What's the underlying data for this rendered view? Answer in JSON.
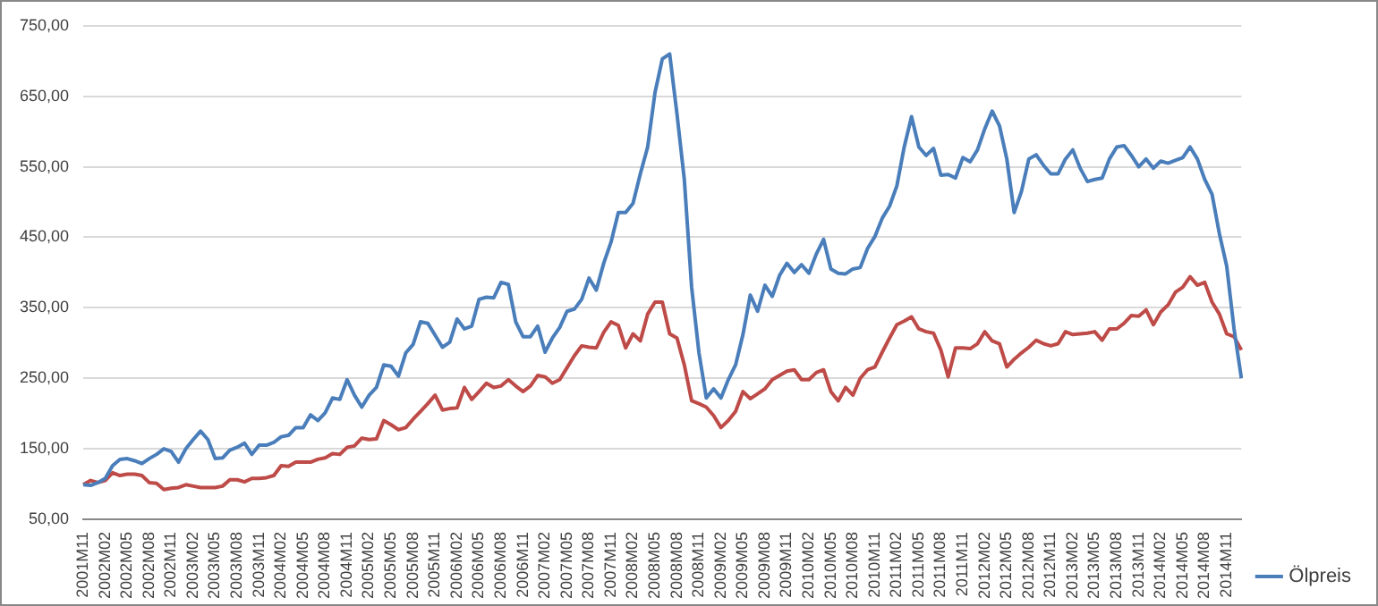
{
  "chart_data": {
    "type": "line",
    "categories": [
      "2001M11",
      null,
      null,
      "2002M02",
      null,
      null,
      "2002M05",
      null,
      null,
      "2002M08",
      null,
      null,
      "2002M11",
      null,
      null,
      "2003M02",
      null,
      null,
      "2003M05",
      null,
      null,
      "2003M08",
      null,
      null,
      "2003M11",
      null,
      null,
      "2004M02",
      null,
      null,
      "2004M05",
      null,
      null,
      "2004M08",
      null,
      null,
      "2004M11",
      null,
      null,
      "2005M02",
      null,
      null,
      "2005M05",
      null,
      null,
      "2005M08",
      null,
      null,
      "2005M11",
      null,
      null,
      "2006M02",
      null,
      null,
      "2006M05",
      null,
      null,
      "2006M08",
      null,
      null,
      "2006M11",
      null,
      null,
      "2007M02",
      null,
      null,
      "2007M05",
      null,
      null,
      "2007M08",
      null,
      null,
      "2007M11",
      null,
      null,
      "2008M02",
      null,
      null,
      "2008M05",
      null,
      null,
      "2008M08",
      null,
      null,
      "2008M11",
      null,
      null,
      "2009M02",
      null,
      null,
      "2009M05",
      null,
      null,
      "2009M08",
      null,
      null,
      "2009M11",
      null,
      null,
      "2010M02",
      null,
      null,
      "2010M05",
      null,
      null,
      "2010M08",
      null,
      null,
      "2010M11",
      null,
      null,
      "2011M02",
      null,
      null,
      "2011M05",
      null,
      null,
      "2011M08",
      null,
      null,
      "2011M11",
      null,
      null,
      "2012M02",
      null,
      null,
      "2012M05",
      null,
      null,
      "2012M08",
      null,
      null,
      "2012M11",
      null,
      null,
      "2013M02",
      null,
      null,
      "2013M05",
      null,
      null,
      "2013M08",
      null,
      null,
      "2013M11",
      null,
      null,
      "2014M02",
      null,
      null,
      "2014M05",
      null,
      null,
      "2014M08",
      null,
      null,
      "2014M11",
      null,
      null
    ],
    "series": [
      {
        "name": "Ölpreis",
        "color": "#4a7ebb",
        "values": [
          99,
          98,
          102,
          108,
          126,
          135,
          136,
          133,
          129,
          136,
          142,
          150,
          146,
          131,
          150,
          163,
          175,
          163,
          136,
          137,
          148,
          152,
          158,
          142,
          155,
          155,
          159,
          167,
          169,
          180,
          180,
          198,
          190,
          201,
          222,
          220,
          248,
          226,
          209,
          226,
          237,
          269,
          267,
          253,
          286,
          298,
          330,
          328,
          311,
          294,
          301,
          334,
          320,
          324,
          362,
          365,
          364,
          386,
          383,
          330,
          309,
          309,
          324,
          287,
          307,
          322,
          345,
          348,
          362,
          392,
          375,
          413,
          443,
          485,
          485,
          498,
          540,
          578,
          655,
          703,
          710,
          625,
          532,
          379,
          286,
          222,
          235,
          222,
          248,
          269,
          312,
          368,
          345,
          382,
          366,
          396,
          413,
          400,
          411,
          399,
          426,
          447,
          405,
          399,
          398,
          405,
          407,
          434,
          451,
          477,
          494,
          523,
          578,
          621,
          578,
          566,
          576,
          538,
          539,
          534,
          563,
          557,
          574,
          604,
          629,
          608,
          561,
          485,
          515,
          561,
          567,
          552,
          540,
          540,
          561,
          574,
          548,
          529,
          532,
          534,
          561,
          578,
          580,
          566,
          550,
          561,
          548,
          558,
          555,
          559,
          563,
          578,
          561,
          532,
          511,
          455,
          409,
          320,
          250
        ]
      },
      {
        "color": "#be4b48",
        "values": [
          99,
          105,
          102,
          105,
          116,
          112,
          114,
          114,
          112,
          102,
          101,
          92,
          94,
          95,
          99,
          97,
          95,
          95,
          95,
          97,
          106,
          106,
          103,
          108,
          108,
          109,
          112,
          126,
          125,
          131,
          131,
          131,
          135,
          137,
          143,
          142,
          152,
          154,
          165,
          163,
          164,
          190,
          184,
          177,
          180,
          192,
          203,
          214,
          226,
          205,
          207,
          208,
          237,
          220,
          231,
          243,
          237,
          239,
          248,
          239,
          231,
          239,
          254,
          252,
          243,
          248,
          265,
          282,
          296,
          294,
          293,
          315,
          330,
          325,
          293,
          313,
          303,
          341,
          358,
          358,
          313,
          307,
          269,
          218,
          214,
          209,
          197,
          180,
          190,
          203,
          231,
          221,
          228,
          235,
          248,
          254,
          260,
          262,
          248,
          248,
          258,
          262,
          231,
          218,
          237,
          226,
          250,
          262,
          266,
          287,
          307,
          326,
          331,
          337,
          320,
          316,
          314,
          290,
          252,
          293,
          293,
          292,
          299,
          316,
          303,
          299,
          266,
          277,
          286,
          294,
          304,
          299,
          296,
          299,
          316,
          312,
          313,
          314,
          316,
          304,
          320,
          320,
          328,
          339,
          338,
          347,
          326,
          344,
          354,
          372,
          379,
          394,
          382,
          386,
          358,
          341,
          313,
          309,
          290
        ]
      }
    ],
    "ylim": [
      50,
      750
    ],
    "yticks": [
      {
        "value": 50,
        "label": "50,00"
      },
      {
        "value": 150,
        "label": "150,00"
      },
      {
        "value": 250,
        "label": "250,00"
      },
      {
        "value": 350,
        "label": "350,00"
      },
      {
        "value": 450,
        "label": "450,00"
      },
      {
        "value": 550,
        "label": "550,00"
      },
      {
        "value": 650,
        "label": "650,00"
      },
      {
        "value": 750,
        "label": "750,00"
      }
    ],
    "grid": "y",
    "legend": "bottom right",
    "marker": "none",
    "line_style": "solid"
  }
}
